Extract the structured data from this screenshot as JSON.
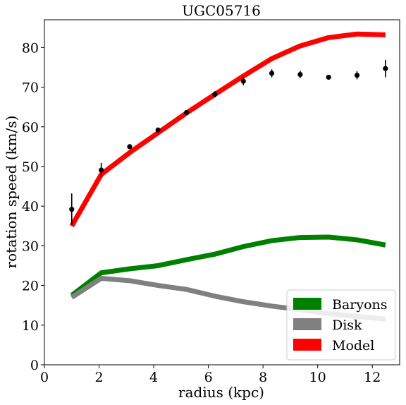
{
  "chart_data": {
    "type": "line",
    "title": "UGC05716",
    "xlabel": "radius (kpc)",
    "ylabel": "rotation speed (km/s)",
    "xlim": [
      0,
      13
    ],
    "ylim": [
      0,
      87
    ],
    "xticks": [
      0,
      2,
      4,
      6,
      8,
      10,
      12
    ],
    "yticks": [
      0,
      10,
      20,
      30,
      40,
      50,
      60,
      70,
      80
    ],
    "grid": false,
    "legend_position": "lower-right",
    "x": [
      1.0,
      2.08,
      3.12,
      4.16,
      5.2,
      6.24,
      7.28,
      8.32,
      9.36,
      10.4,
      11.44,
      12.48
    ],
    "series": [
      {
        "name": "Baryons",
        "color": "#008000",
        "values": [
          17.5,
          23.2,
          24.2,
          25.0,
          26.5,
          27.9,
          29.8,
          31.3,
          32.1,
          32.2,
          31.5,
          30.2
        ]
      },
      {
        "name": "Disk",
        "color": "#808080",
        "values": [
          17.0,
          21.8,
          21.2,
          20.0,
          19.0,
          17.3,
          15.9,
          14.8,
          13.9,
          12.9,
          12.2,
          11.5
        ]
      },
      {
        "name": "Model",
        "color": "#ff0000",
        "values": [
          35.0,
          48.0,
          53.5,
          58.5,
          63.5,
          68.2,
          72.8,
          77.2,
          80.4,
          82.5,
          83.4,
          83.2
        ]
      }
    ],
    "observed": {
      "values": [
        39.2,
        49.1,
        55.0,
        59.2,
        63.6,
        68.2,
        71.5,
        73.5,
        73.2,
        72.5,
        73.0,
        74.7
      ],
      "errors": [
        4.0,
        1.8,
        0.6,
        0.6,
        0.6,
        0.8,
        1.0,
        1.0,
        0.9,
        0.6,
        1.0,
        2.2
      ],
      "color": "#000000"
    }
  }
}
